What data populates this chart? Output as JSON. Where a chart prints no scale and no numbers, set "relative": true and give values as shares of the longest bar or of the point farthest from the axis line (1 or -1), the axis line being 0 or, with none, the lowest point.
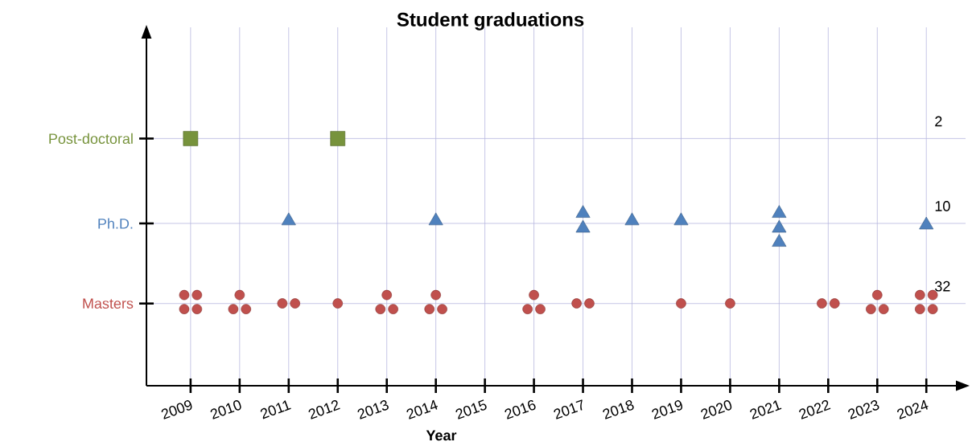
{
  "chart_data": {
    "type": "scatter",
    "title": "Student graduations",
    "xlabel": "Year",
    "relative": true,
    "xlim": [
      2008.1,
      2024.8
    ],
    "xticks": [
      2009,
      2010,
      2011,
      2012,
      2013,
      2014,
      2015,
      2016,
      2017,
      2018,
      2019,
      2020,
      2021,
      2022,
      2023,
      2024
    ],
    "grid": true,
    "annotations": [
      "2",
      "10",
      "32"
    ],
    "series": [
      {
        "name": "Masters",
        "color": "#c0504d",
        "marker": "circle",
        "x": [
          2008.87,
          2009.13,
          2008.87,
          2009.13,
          2010,
          2009.87,
          2010.13,
          2010.87,
          2011.13,
          2012,
          2013,
          2012.87,
          2013.13,
          2014,
          2013.87,
          2014.13,
          2016,
          2015.87,
          2016.13,
          2016.87,
          2017.13,
          2019,
          2020,
          2021.87,
          2022.13,
          2023,
          2022.87,
          2023.13,
          2023.87,
          2024.13,
          2023.87,
          2024.13
        ],
        "values": [
          0.367,
          0.367,
          0.31,
          0.31,
          0.367,
          0.31,
          0.31,
          0.333,
          0.333,
          0.333,
          0.367,
          0.31,
          0.31,
          0.367,
          0.31,
          0.31,
          0.367,
          0.31,
          0.31,
          0.333,
          0.333,
          0.333,
          0.333,
          0.333,
          0.333,
          0.367,
          0.31,
          0.31,
          0.367,
          0.367,
          0.31,
          0.31
        ]
      },
      {
        "name": "Ph.D.",
        "color": "#4f81bd",
        "marker": "triangle",
        "x": [
          2011,
          2014,
          2017,
          2017,
          2018,
          2019,
          2021,
          2021,
          2021,
          2024
        ],
        "values": [
          0.667,
          0.667,
          0.697,
          0.637,
          0.667,
          0.667,
          0.697,
          0.637,
          0.58,
          0.65
        ]
      },
      {
        "name": "Post-doctoral",
        "color": "#77933c",
        "marker": "square",
        "x": [
          2009,
          2012
        ],
        "values": [
          1.0,
          1.0
        ]
      }
    ]
  }
}
